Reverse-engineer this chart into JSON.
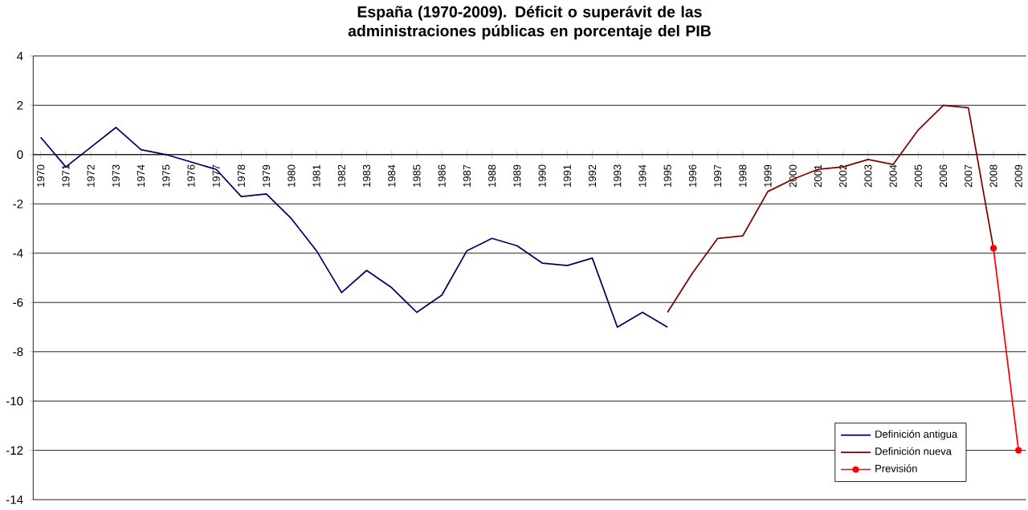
{
  "chart_data": {
    "type": "line",
    "title": "España (1970-2009). Déficit o superávit de las administraciones públicas en porcentaje del PIB",
    "categories": [
      "1970",
      "1971",
      "1972",
      "1973",
      "1974",
      "1975",
      "1976",
      "1977",
      "1978",
      "1979",
      "1980",
      "1981",
      "1982",
      "1983",
      "1984",
      "1985",
      "1986",
      "1987",
      "1988",
      "1989",
      "1990",
      "1991",
      "1992",
      "1993",
      "1994",
      "1995",
      "1996",
      "1997",
      "1998",
      "1999",
      "2000",
      "2001",
      "2002",
      "2003",
      "2004",
      "2005",
      "2006",
      "2007",
      "2008",
      "2009"
    ],
    "series": [
      {
        "name": "Definición antigua",
        "color": "#000066",
        "marker": "none",
        "values": [
          0.7,
          -0.5,
          0.3,
          1.1,
          0.2,
          0.0,
          -0.3,
          -0.6,
          -1.7,
          -1.6,
          -2.6,
          -3.9,
          -5.6,
          -4.7,
          -5.4,
          -6.4,
          -5.7,
          -3.9,
          -3.4,
          -3.7,
          -4.4,
          -4.5,
          -4.2,
          -7.0,
          -6.4,
          -7.0,
          null,
          null,
          null,
          null,
          null,
          null,
          null,
          null,
          null,
          null,
          null,
          null,
          null,
          null
        ]
      },
      {
        "name": "Definición nueva",
        "color": "#800000",
        "marker": "none",
        "values": [
          null,
          null,
          null,
          null,
          null,
          null,
          null,
          null,
          null,
          null,
          null,
          null,
          null,
          null,
          null,
          null,
          null,
          null,
          null,
          null,
          null,
          null,
          null,
          null,
          null,
          -6.4,
          -4.8,
          -3.4,
          -3.3,
          -1.5,
          -1.0,
          -0.6,
          -0.5,
          -0.2,
          -0.4,
          1.0,
          2.0,
          1.9,
          -3.8,
          null
        ]
      },
      {
        "name": "Previsión",
        "color": "#ff0000",
        "marker": "circle",
        "values": [
          null,
          null,
          null,
          null,
          null,
          null,
          null,
          null,
          null,
          null,
          null,
          null,
          null,
          null,
          null,
          null,
          null,
          null,
          null,
          null,
          null,
          null,
          null,
          null,
          null,
          null,
          null,
          null,
          null,
          null,
          null,
          null,
          null,
          null,
          null,
          null,
          null,
          null,
          -3.8,
          -12
        ]
      }
    ],
    "ylim": [
      -14,
      4
    ],
    "yticks": [
      -14,
      -12,
      -10,
      -8,
      -6,
      -4,
      -2,
      0,
      2,
      4
    ],
    "grid": "y",
    "legend": "bottom right"
  }
}
